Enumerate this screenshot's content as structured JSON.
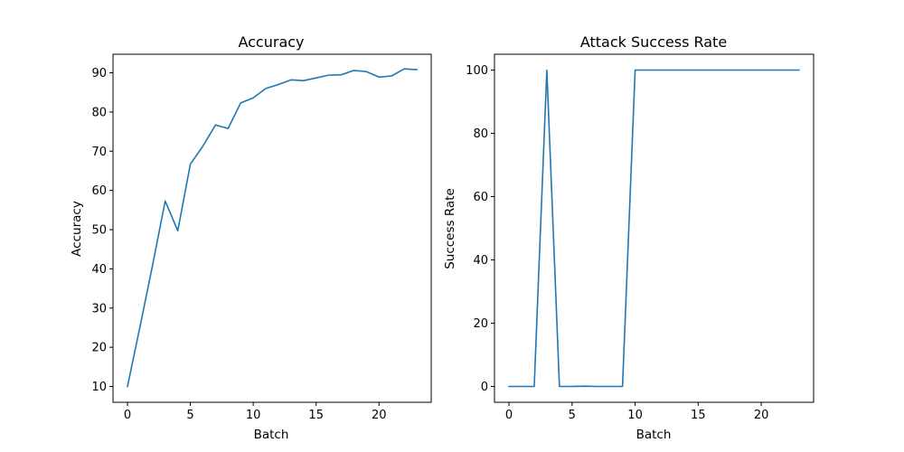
{
  "chart_data": [
    {
      "type": "line",
      "title": "Accuracy",
      "xlabel": "Batch",
      "ylabel": "Accuracy",
      "xlim": [
        -1.15,
        24.15
      ],
      "ylim": [
        5.97,
        94.73
      ],
      "xticks": [
        0,
        5,
        10,
        15,
        20
      ],
      "yticks": [
        10,
        20,
        30,
        40,
        50,
        60,
        70,
        80,
        90
      ],
      "grid": false,
      "color": "#1f77b4",
      "series": [
        {
          "x": [
            0,
            1,
            2,
            3,
            4,
            5,
            6,
            7,
            8,
            9,
            10,
            11,
            12,
            13,
            14,
            15,
            16,
            17,
            18,
            19,
            20,
            21,
            22,
            23
          ],
          "y": [
            10.0,
            25.3,
            41.0,
            57.3,
            49.7,
            66.7,
            71.3,
            76.7,
            75.8,
            82.3,
            83.6,
            86.0,
            87.0,
            88.2,
            88.0,
            88.7,
            89.4,
            89.5,
            90.6,
            90.3,
            88.9,
            89.2,
            91.0,
            90.8
          ]
        }
      ]
    },
    {
      "type": "line",
      "title": "Attack Success Rate",
      "xlabel": "Batch",
      "ylabel": "Success Rate",
      "xlim": [
        -1.15,
        24.15
      ],
      "ylim": [
        -5,
        105
      ],
      "xticks": [
        0,
        5,
        10,
        15,
        20
      ],
      "yticks": [
        0,
        20,
        40,
        60,
        80,
        100
      ],
      "grid": false,
      "color": "#1f77b4",
      "series": [
        {
          "x": [
            0,
            1,
            2,
            3,
            4,
            5,
            6,
            7,
            8,
            9,
            10,
            11,
            12,
            13,
            14,
            15,
            16,
            17,
            18,
            19,
            20,
            21,
            22,
            23
          ],
          "y": [
            0,
            0,
            0,
            100,
            0,
            0,
            0.1,
            0,
            0,
            0,
            100,
            100,
            100,
            100,
            100,
            100,
            100,
            100,
            100,
            100,
            100,
            100,
            100,
            100
          ]
        }
      ]
    }
  ]
}
